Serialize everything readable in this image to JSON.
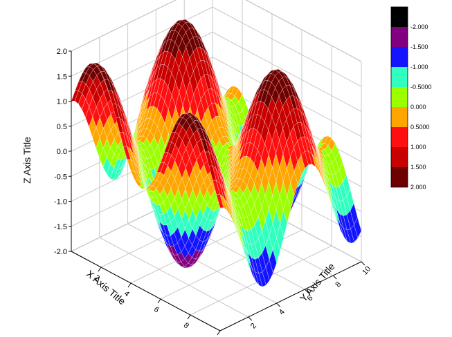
{
  "chart_data": {
    "type": "surface",
    "title": "",
    "xlabel": "X Axis Title",
    "ylabel": "Y Axis Title",
    "zlabel": "Z Axis Title",
    "xlim": [
      0,
      10
    ],
    "ylim": [
      0,
      10
    ],
    "zlim": [
      -2.0,
      2.0
    ],
    "x_ticks": [
      "2",
      "4",
      "6",
      "8",
      "10"
    ],
    "y_ticks": [
      "2",
      "4",
      "6",
      "8",
      "10"
    ],
    "z_ticks": [
      "2.0",
      "1.5",
      "1.0",
      "0.5",
      "0.0",
      "-0.5",
      "-1.0",
      "-1.5",
      "-2.0"
    ],
    "function": "z = sin(x) + cos(y)",
    "colormap": {
      "labels": [
        "-2.000",
        "-1.500",
        "-1.000",
        "-0.5000",
        "0.000",
        "0.5000",
        "1.000",
        "1.500",
        "2.000"
      ],
      "colors": [
        "#000000",
        "#800080",
        "#1414ff",
        "#30ffc0",
        "#9cff00",
        "#ffa500",
        "#ff1010",
        "#c80000",
        "#6e0000"
      ]
    },
    "grid": true
  }
}
